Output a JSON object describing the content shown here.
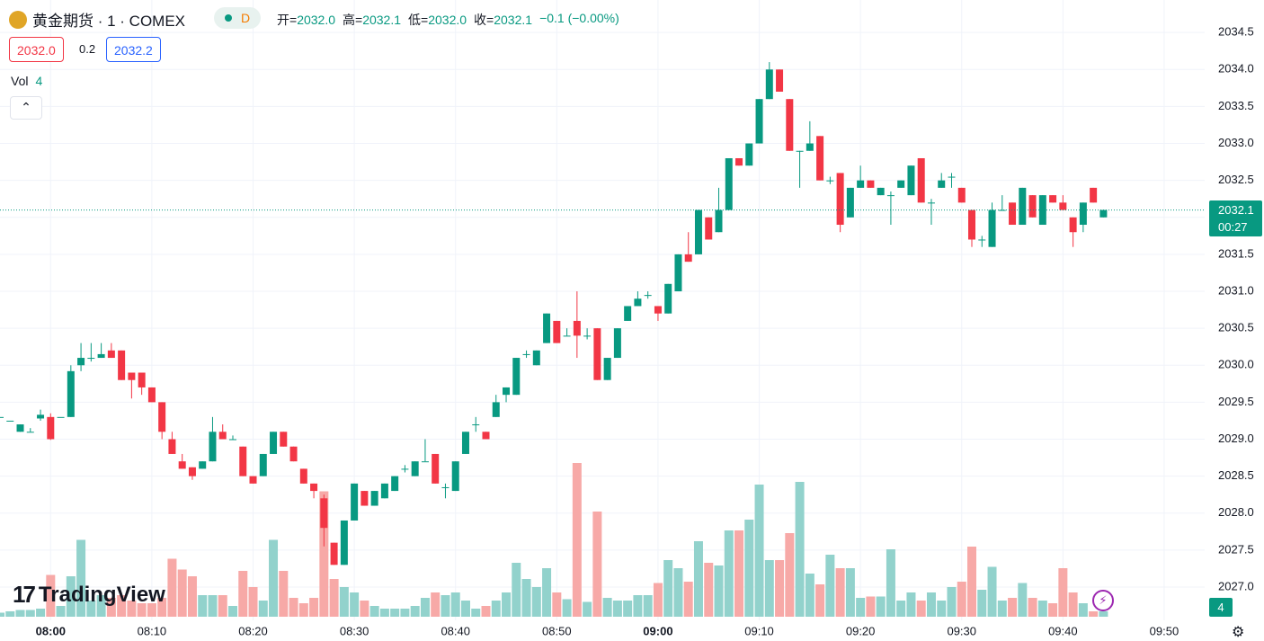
{
  "header": {
    "symbol": "黄金期货 · 1 · COMEX",
    "badge": "D",
    "ohlc": [
      {
        "label": "开=",
        "value": "2032.0"
      },
      {
        "label": "高=",
        "value": "2032.1"
      },
      {
        "label": "低=",
        "value": "2032.0"
      },
      {
        "label": "收=",
        "value": "2032.1"
      }
    ],
    "change": "−0.1 (−0.00%)",
    "sell": "2032.0",
    "spread": "0.2",
    "buy": "2032.2",
    "volume_label": "Vol",
    "countdown": "00:27",
    "logo": "TradingView"
  },
  "chart_data": {
    "type": "candlestick",
    "up_color": "#089981",
    "down_color": "#f23645",
    "up_volume_color": "#92d2cc",
    "down_volume_color": "#f7a9a7",
    "grid": true,
    "x": [
      "07:55",
      "07:56",
      "07:57",
      "07:58",
      "07:59",
      "08:00",
      "08:01",
      "08:02",
      "08:03",
      "08:04",
      "08:05",
      "08:06",
      "08:07",
      "08:08",
      "08:09",
      "08:10",
      "08:11",
      "08:12",
      "08:13",
      "08:14",
      "08:15",
      "08:16",
      "08:17",
      "08:18",
      "08:19",
      "08:20",
      "08:21",
      "08:22",
      "08:23",
      "08:24",
      "08:25",
      "08:26",
      "08:27",
      "08:28",
      "08:29",
      "08:30",
      "08:31",
      "08:32",
      "08:33",
      "08:34",
      "08:35",
      "08:36",
      "08:37",
      "08:38",
      "08:39",
      "08:40",
      "08:41",
      "08:42",
      "08:43",
      "08:44",
      "08:45",
      "08:46",
      "08:47",
      "08:48",
      "08:49",
      "08:50",
      "08:51",
      "08:52",
      "08:53",
      "08:54",
      "08:55",
      "08:56",
      "08:57",
      "08:58",
      "08:59",
      "09:00",
      "09:01",
      "09:02",
      "09:03",
      "09:04",
      "09:05",
      "09:06",
      "09:07",
      "09:08",
      "09:09",
      "09:10",
      "09:11",
      "09:12",
      "09:13",
      "09:14",
      "09:15",
      "09:16",
      "09:17",
      "09:18",
      "09:19",
      "09:20",
      "09:21",
      "09:22",
      "09:23",
      "09:24",
      "09:25",
      "09:26",
      "09:27",
      "09:28",
      "09:29",
      "09:30",
      "09:31",
      "09:32",
      "09:33",
      "09:34",
      "09:35",
      "09:36",
      "09:37",
      "09:38",
      "09:39",
      "09:40",
      "09:41",
      "09:42",
      "09:43",
      "09:44"
    ],
    "open": [
      2029.3,
      2029.25,
      2029.1,
      2029.1,
      2029.28,
      2029.3,
      2029.3,
      2029.3,
      2030.0,
      2030.1,
      2030.1,
      2030.2,
      2030.2,
      2029.9,
      2029.9,
      2029.7,
      2029.5,
      2029.0,
      2028.7,
      2028.62,
      2028.6,
      2028.7,
      2029.1,
      2029.0,
      2028.9,
      2028.5,
      2028.5,
      2028.8,
      2029.1,
      2028.9,
      2028.6,
      2028.4,
      2028.2,
      2027.6,
      2027.3,
      2027.9,
      2028.3,
      2028.1,
      2028.2,
      2028.3,
      2028.6,
      2028.5,
      2028.7,
      2028.8,
      2028.35,
      2028.3,
      2028.8,
      2029.2,
      2029.1,
      2029.3,
      2029.6,
      2029.6,
      2030.15,
      2030.0,
      2030.3,
      2030.6,
      2030.4,
      2030.6,
      2030.4,
      2030.5,
      2029.8,
      2030.1,
      2030.6,
      2030.8,
      2030.95,
      2030.8,
      2030.7,
      2031.0,
      2031.5,
      2031.5,
      2032.0,
      2031.8,
      2032.1,
      2032.8,
      2032.7,
      2033.0,
      2033.6,
      2034.0,
      2033.6,
      2032.9,
      2032.9,
      2033.1,
      2032.5,
      2032.6,
      2032.0,
      2032.4,
      2032.5,
      2032.3,
      2032.3,
      2032.4,
      2032.3,
      2032.8,
      2032.2,
      2032.4,
      2032.55,
      2032.4,
      2032.1,
      2031.7,
      2031.6,
      2032.1,
      2032.2,
      2031.9,
      2032.3,
      2031.9,
      2032.3,
      2032.2,
      2032.0,
      2031.9,
      2032.4,
      2032.0
    ],
    "high": [
      2029.3,
      2029.25,
      2029.2,
      2029.15,
      2029.4,
      2029.35,
      2029.3,
      2030.0,
      2030.3,
      2030.3,
      2030.3,
      2030.3,
      2030.2,
      2029.9,
      2029.9,
      2029.7,
      2029.5,
      2029.1,
      2028.8,
      2028.62,
      2028.7,
      2029.3,
      2029.2,
      2029.05,
      2028.9,
      2028.5,
      2028.8,
      2029.1,
      2029.1,
      2028.9,
      2028.6,
      2028.4,
      2028.25,
      2027.6,
      2027.9,
      2028.4,
      2028.3,
      2028.3,
      2028.4,
      2028.5,
      2028.65,
      2028.7,
      2029.0,
      2028.8,
      2028.4,
      2028.7,
      2029.1,
      2029.3,
      2029.1,
      2029.6,
      2029.7,
      2030.1,
      2030.2,
      2030.2,
      2030.7,
      2030.6,
      2030.5,
      2031.0,
      2030.5,
      2030.5,
      2030.1,
      2030.5,
      2030.8,
      2031.0,
      2031.0,
      2030.8,
      2031.1,
      2031.5,
      2031.8,
      2032.1,
      2032.0,
      2032.4,
      2032.8,
      2032.8,
      2033.0,
      2033.6,
      2034.1,
      2034.0,
      2033.6,
      2032.9,
      2033.3,
      2033.1,
      2032.55,
      2032.6,
      2032.4,
      2032.7,
      2032.5,
      2032.4,
      2032.35,
      2032.5,
      2032.7,
      2032.8,
      2032.25,
      2032.6,
      2032.6,
      2032.4,
      2032.1,
      2031.75,
      2032.2,
      2032.3,
      2032.2,
      2032.4,
      2032.3,
      2032.3,
      2032.3,
      2032.3,
      2032.0,
      2032.2,
      2032.4,
      2032.1
    ],
    "low": [
      2029.3,
      2029.25,
      2029.1,
      2029.1,
      2029.25,
      2028.99,
      2029.3,
      2029.3,
      2029.92,
      2030.05,
      2030.1,
      2030.1,
      2029.8,
      2029.55,
      2029.6,
      2029.5,
      2029.0,
      2028.8,
      2028.6,
      2028.45,
      2028.6,
      2028.7,
      2029.0,
      2029.0,
      2028.5,
      2028.4,
      2028.5,
      2028.8,
      2028.9,
      2028.7,
      2028.4,
      2028.2,
      2027.55,
      2027.3,
      2027.3,
      2027.9,
      2028.1,
      2028.1,
      2028.2,
      2028.3,
      2028.55,
      2028.5,
      2028.7,
      2028.4,
      2028.2,
      2028.3,
      2028.8,
      2029.1,
      2029.0,
      2029.3,
      2029.5,
      2029.6,
      2030.1,
      2030.0,
      2030.3,
      2030.3,
      2030.4,
      2030.1,
      2030.35,
      2029.8,
      2029.8,
      2030.1,
      2030.6,
      2030.8,
      2030.9,
      2030.6,
      2030.7,
      2031.0,
      2031.4,
      2031.5,
      2031.7,
      2031.8,
      2032.1,
      2032.7,
      2032.7,
      2033.0,
      2033.6,
      2033.7,
      2032.9,
      2032.4,
      2032.9,
      2032.5,
      2032.45,
      2031.8,
      2032.0,
      2032.4,
      2032.4,
      2032.3,
      2031.9,
      2032.4,
      2032.3,
      2032.2,
      2031.9,
      2032.4,
      2032.4,
      2032.2,
      2031.6,
      2031.6,
      2031.6,
      2032.1,
      2031.9,
      2031.9,
      2032.0,
      2031.9,
      2032.2,
      2032.1,
      2031.6,
      2031.8,
      2032.2,
      2032.0
    ],
    "close": [
      2029.3,
      2029.25,
      2029.2,
      2029.1,
      2029.33,
      2029.0,
      2029.3,
      2029.92,
      2030.1,
      2030.1,
      2030.15,
      2030.1,
      2029.8,
      2029.8,
      2029.7,
      2029.5,
      2029.1,
      2028.8,
      2028.6,
      2028.5,
      2028.7,
      2029.1,
      2029.0,
      2029.0,
      2028.5,
      2028.4,
      2028.8,
      2029.1,
      2028.9,
      2028.7,
      2028.4,
      2028.3,
      2027.8,
      2027.3,
      2027.9,
      2028.4,
      2028.1,
      2028.3,
      2028.4,
      2028.5,
      2028.6,
      2028.7,
      2028.7,
      2028.4,
      2028.35,
      2028.7,
      2029.1,
      2029.2,
      2029.0,
      2029.5,
      2029.7,
      2030.1,
      2030.15,
      2030.2,
      2030.7,
      2030.3,
      2030.4,
      2030.4,
      2030.4,
      2029.8,
      2030.1,
      2030.5,
      2030.8,
      2030.9,
      2030.95,
      2030.7,
      2031.1,
      2031.5,
      2031.4,
      2032.1,
      2031.7,
      2032.1,
      2032.8,
      2032.7,
      2033.0,
      2033.6,
      2034.0,
      2033.7,
      2032.9,
      2032.9,
      2033.0,
      2032.5,
      2032.5,
      2031.9,
      2032.4,
      2032.5,
      2032.4,
      2032.4,
      2032.3,
      2032.5,
      2032.7,
      2032.2,
      2032.2,
      2032.5,
      2032.55,
      2032.2,
      2031.7,
      2031.7,
      2032.1,
      2032.1,
      2031.9,
      2032.4,
      2032.0,
      2032.3,
      2032.2,
      2032.1,
      2031.8,
      2032.2,
      2032.2,
      2032.1
    ],
    "volume": [
      3,
      4,
      5,
      5,
      6,
      31,
      8,
      30,
      57,
      12,
      16,
      14,
      16,
      12,
      10,
      10,
      14,
      43,
      35,
      30,
      16,
      16,
      16,
      8,
      34,
      22,
      12,
      57,
      34,
      14,
      10,
      14,
      93,
      28,
      22,
      18,
      12,
      8,
      6,
      6,
      6,
      8,
      14,
      18,
      16,
      18,
      12,
      6,
      8,
      12,
      18,
      40,
      28,
      22,
      36,
      18,
      13,
      114,
      11,
      78,
      14,
      12,
      12,
      16,
      16,
      25,
      42,
      36,
      26,
      56,
      40,
      38,
      64,
      64,
      72,
      98,
      42,
      42,
      62,
      100,
      32,
      24,
      46,
      36,
      36,
      14,
      15,
      15,
      50,
      12,
      18,
      12,
      18,
      12,
      22,
      26,
      52,
      20,
      37,
      12,
      14,
      25,
      14,
      12,
      10,
      36,
      18,
      10,
      4,
      4
    ],
    "xlim": [
      "07:55",
      "09:54"
    ],
    "xticks": [
      "08:00",
      "08:10",
      "08:20",
      "08:30",
      "08:40",
      "08:50",
      "09:00",
      "09:10",
      "09:20",
      "09:30",
      "09:40",
      "09:50"
    ],
    "ylim": [
      2026.55,
      2034.94
    ],
    "yticks": [
      {
        "value": 2027.0,
        "label": "2027.0"
      },
      2027.5,
      {
        "value": 2028.0,
        "label": "2028.0"
      },
      2028.5,
      {
        "value": 2029.0,
        "label": "2029.0"
      },
      2029.5,
      {
        "value": 2030.0,
        "label": "2030.0"
      },
      2030.5,
      {
        "value": 2031.0,
        "label": "2031.0"
      },
      2031.5,
      {
        "value": 2032.0,
        "label": "2032.0"
      },
      2032.5,
      {
        "value": 2033.0,
        "label": "2033.0"
      },
      2033.5,
      {
        "value": 2034.0,
        "label": "2034.0"
      },
      2034.5
    ],
    "volume_lim": [
      0,
      120
    ]
  }
}
